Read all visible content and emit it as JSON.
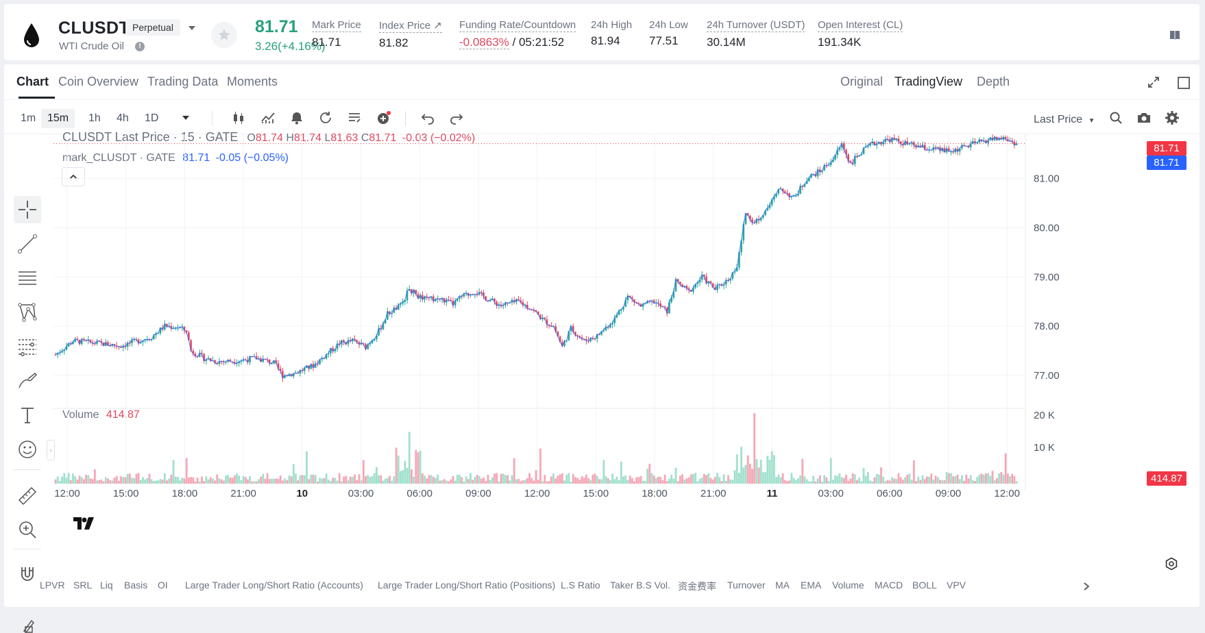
{
  "header": {
    "symbol": "CLUSDT",
    "contract_type": "Perpetual",
    "name": "WTI Crude Oil",
    "last_price": "81.71",
    "change": "3.26(+4.16%)",
    "stats": [
      {
        "label": "Mark Price",
        "value": "81.71"
      },
      {
        "label": "Index Price ↗",
        "value": "81.82"
      },
      {
        "label": "Funding Rate/Countdown",
        "value": "-0.0863%",
        "value2": "/ 05:21:52"
      },
      {
        "label": "24h High",
        "value": "81.94"
      },
      {
        "label": "24h Low",
        "value": "77.51"
      },
      {
        "label": "24h Turnover (USDT)",
        "value": "30.14M"
      },
      {
        "label": "Open Interest (CL)",
        "value": "191.34K"
      }
    ]
  },
  "tabs": [
    "Chart",
    "Coin Overview",
    "Trading Data",
    "Moments"
  ],
  "view_modes": [
    "Original",
    "TradingView",
    "Depth"
  ],
  "active_view": "TradingView",
  "timeframes": [
    "1m",
    "15m",
    "1h",
    "4h",
    "1D"
  ],
  "active_timeframe": "15m",
  "price_source": "Last Price",
  "legend": {
    "title": "CLUSDT Last Price · 15 · GATE",
    "o_label": "O",
    "o": "81.74",
    "h_label": "H",
    "h": "81.74",
    "l_label": "L",
    "l": "81.63",
    "c_label": "C",
    "c": "81.71",
    "chg": "-0.03 (−0.02%)",
    "mark_label": "mark_CLUSDT · GATE",
    "mark_value": "81.71",
    "mark_chg": "-0.05 (−0.05%)"
  },
  "volume": {
    "label": "Volume",
    "value": "414.87"
  },
  "price_tags": {
    "last": "81.71",
    "mark": "81.71",
    "volume": "414.87"
  },
  "colors": {
    "up": "#26a69a",
    "down": "#e0475f",
    "mark": "#2962ff",
    "accent_red": "#f23645"
  },
  "indicators": [
    "LPVR",
    "SRL",
    "Liq",
    "Basis",
    "OI",
    "Large Trader Long/Short Ratio (Accounts)",
    "Large Trader Long/Short Ratio (Positions)",
    "L.S Ratio",
    "Taker B.S Vol.",
    "资金费率",
    "Turnover",
    "MA",
    "EMA",
    "Volume",
    "MACD",
    "BOLL",
    "VPV"
  ],
  "chart_data": {
    "type": "candlestick",
    "interval": "15m",
    "price_axis": {
      "ticks": [
        "81.00",
        "80.00",
        "79.00",
        "78.00",
        "77.00"
      ],
      "range": [
        76.4,
        81.9
      ]
    },
    "volume_axis": {
      "ticks": [
        "20 K",
        "10 K"
      ]
    },
    "time_axis": [
      "12:00",
      "15:00",
      "18:00",
      "21:00",
      "10",
      "03:00",
      "06:00",
      "09:00",
      "12:00",
      "15:00",
      "18:00",
      "21:00",
      "11",
      "03:00",
      "06:00",
      "09:00",
      "12:00"
    ],
    "time_axis_bold": [
      "10",
      "11"
    ],
    "close_path": [
      {
        "i": 0,
        "p": 77.42
      },
      {
        "i": 8,
        "p": 77.7
      },
      {
        "i": 20,
        "p": 77.65
      },
      {
        "i": 30,
        "p": 77.6
      },
      {
        "i": 36,
        "p": 77.68
      },
      {
        "i": 44,
        "p": 77.78
      },
      {
        "i": 50,
        "p": 78.0
      },
      {
        "i": 56,
        "p": 77.98
      },
      {
        "i": 60,
        "p": 77.9
      },
      {
        "i": 62,
        "p": 77.5
      },
      {
        "i": 68,
        "p": 77.35
      },
      {
        "i": 74,
        "p": 77.28
      },
      {
        "i": 84,
        "p": 77.3
      },
      {
        "i": 92,
        "p": 77.35
      },
      {
        "i": 100,
        "p": 77.25
      },
      {
        "i": 104,
        "p": 77.0
      },
      {
        "i": 110,
        "p": 77.05
      },
      {
        "i": 118,
        "p": 77.2
      },
      {
        "i": 124,
        "p": 77.42
      },
      {
        "i": 130,
        "p": 77.65
      },
      {
        "i": 136,
        "p": 77.7
      },
      {
        "i": 142,
        "p": 77.58
      },
      {
        "i": 148,
        "p": 77.9
      },
      {
        "i": 152,
        "p": 78.25
      },
      {
        "i": 158,
        "p": 78.42
      },
      {
        "i": 162,
        "p": 78.75
      },
      {
        "i": 168,
        "p": 78.55
      },
      {
        "i": 176,
        "p": 78.55
      },
      {
        "i": 182,
        "p": 78.45
      },
      {
        "i": 186,
        "p": 78.6
      },
      {
        "i": 192,
        "p": 78.7
      },
      {
        "i": 198,
        "p": 78.55
      },
      {
        "i": 204,
        "p": 78.42
      },
      {
        "i": 212,
        "p": 78.5
      },
      {
        "i": 218,
        "p": 78.35
      },
      {
        "i": 224,
        "p": 78.1
      },
      {
        "i": 228,
        "p": 78.0
      },
      {
        "i": 232,
        "p": 77.58
      },
      {
        "i": 236,
        "p": 77.95
      },
      {
        "i": 242,
        "p": 77.7
      },
      {
        "i": 248,
        "p": 77.8
      },
      {
        "i": 256,
        "p": 78.15
      },
      {
        "i": 262,
        "p": 78.6
      },
      {
        "i": 268,
        "p": 78.4
      },
      {
        "i": 274,
        "p": 78.5
      },
      {
        "i": 280,
        "p": 78.3
      },
      {
        "i": 284,
        "p": 78.9
      },
      {
        "i": 290,
        "p": 78.7
      },
      {
        "i": 296,
        "p": 79.0
      },
      {
        "i": 302,
        "p": 78.75
      },
      {
        "i": 308,
        "p": 78.95
      },
      {
        "i": 312,
        "p": 79.2
      },
      {
        "i": 316,
        "p": 80.3
      },
      {
        "i": 320,
        "p": 80.1
      },
      {
        "i": 326,
        "p": 80.4
      },
      {
        "i": 332,
        "p": 80.8
      },
      {
        "i": 338,
        "p": 80.6
      },
      {
        "i": 344,
        "p": 81.0
      },
      {
        "i": 350,
        "p": 81.15
      },
      {
        "i": 356,
        "p": 81.4
      },
      {
        "i": 360,
        "p": 81.7
      },
      {
        "i": 364,
        "p": 81.3
      },
      {
        "i": 368,
        "p": 81.5
      },
      {
        "i": 374,
        "p": 81.7
      },
      {
        "i": 382,
        "p": 81.8
      },
      {
        "i": 390,
        "p": 81.7
      },
      {
        "i": 400,
        "p": 81.6
      },
      {
        "i": 410,
        "p": 81.55
      },
      {
        "i": 420,
        "p": 81.7
      },
      {
        "i": 428,
        "p": 81.8
      },
      {
        "i": 434,
        "p": 81.82
      },
      {
        "i": 440,
        "p": 81.71
      }
    ],
    "last_price": 81.71,
    "last_volume": 414.87
  }
}
